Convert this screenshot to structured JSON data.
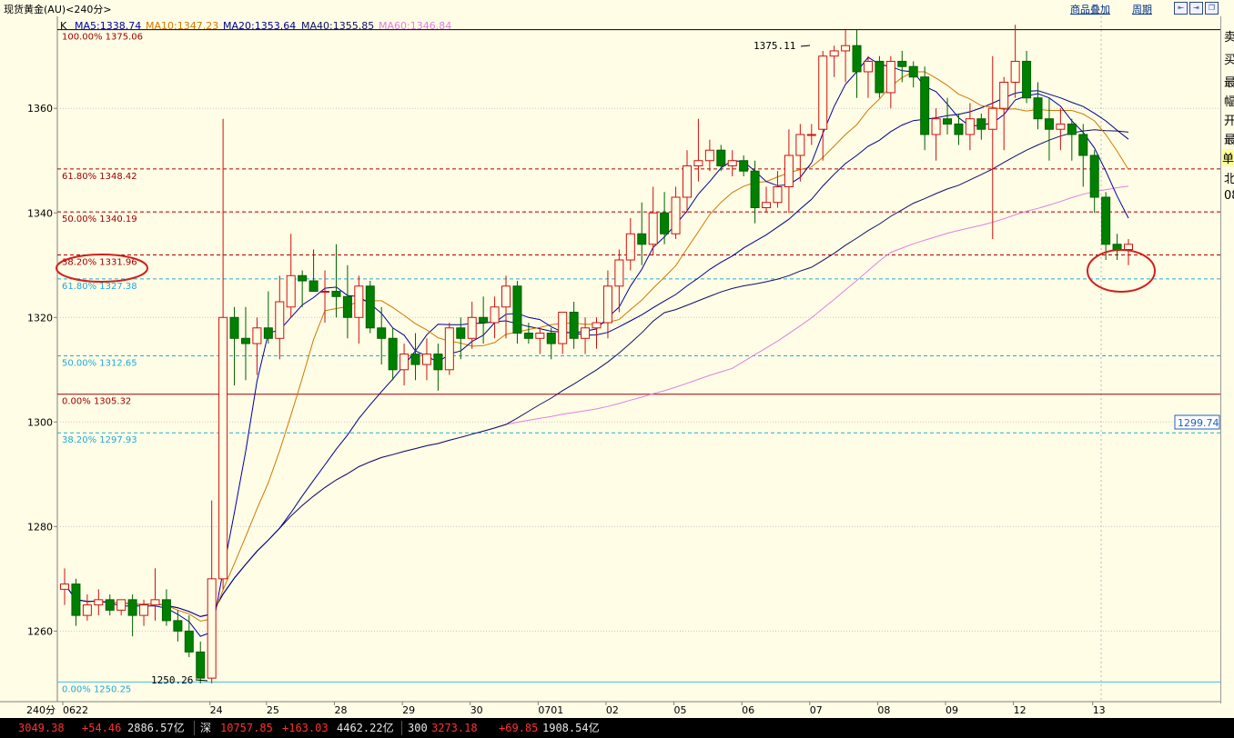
{
  "window": {
    "title": "现货黄金(AU)<240分>",
    "overlay_button": "商品叠加",
    "period_button": "周期",
    "nav_icons": [
      "step-back-icon",
      "step-forward-icon",
      "restore-window-icon"
    ]
  },
  "indicator": {
    "mode": "K",
    "ma5": "MA5:1338.74",
    "ma10": "MA10:1347.23",
    "ma20": "MA20:1353.64",
    "ma40": "MA40:1355.85",
    "ma60": "MA60:1346.84",
    "colors": {
      "ma5": "#0000a0",
      "ma10": "#d07800",
      "ma20": "#00008a",
      "ma40": "#101060",
      "ma60": "#e080e0"
    }
  },
  "chart_data": {
    "type": "candlestick",
    "y_ticks": [
      "1360",
      "1340",
      "1320",
      "1300",
      "1280",
      "1260"
    ],
    "ylim": [
      1246.5,
      1377.6
    ],
    "x_labels": [
      "0622",
      "24",
      "25",
      "28",
      "29",
      "30",
      "0701",
      "02",
      "05",
      "06",
      "07",
      "08",
      "09",
      "12",
      "13"
    ],
    "x_corner_label": "240分",
    "price_box": "1299.74",
    "high_label": "1375.11",
    "low_label": "1250.26",
    "fib_levels": [
      {
        "text": "100.00% 1375.06",
        "value": 1375.06,
        "style": "solid-black"
      },
      {
        "text": "61.80% 1348.42",
        "value": 1348.42,
        "style": "dash-red"
      },
      {
        "text": "50.00% 1340.19",
        "value": 1340.19,
        "style": "dash-red"
      },
      {
        "text": "38.20% 1331.96",
        "value": 1331.96,
        "style": "dash-red"
      },
      {
        "text": "61.80% 1327.38",
        "value": 1327.38,
        "style": "dash-cyan"
      },
      {
        "text": "50.00% 1312.65",
        "value": 1312.65,
        "style": "dash-cyan"
      },
      {
        "text": "0.00% 1305.32",
        "value": 1305.32,
        "style": "solid-red"
      },
      {
        "text": "38.20% 1297.93",
        "value": 1297.93,
        "style": "dash-cyan"
      },
      {
        "text": "0.00% 1250.25",
        "value": 1250.25,
        "style": "solid-cyan"
      }
    ],
    "candles": [
      [
        1268,
        1272,
        1265,
        1269
      ],
      [
        1269,
        1270,
        1261,
        1263
      ],
      [
        1263,
        1267,
        1262,
        1265
      ],
      [
        1265,
        1268,
        1263,
        1266
      ],
      [
        1266,
        1267,
        1263,
        1264
      ],
      [
        1264,
        1266,
        1263,
        1266
      ],
      [
        1266,
        1267,
        1259,
        1263
      ],
      [
        1263,
        1266,
        1261,
        1265
      ],
      [
        1265,
        1272,
        1262,
        1266
      ],
      [
        1266,
        1268,
        1261,
        1262
      ],
      [
        1262,
        1264,
        1258,
        1260
      ],
      [
        1260,
        1263,
        1255,
        1256
      ],
      [
        1256,
        1258,
        1250,
        1251
      ],
      [
        1251,
        1285,
        1250,
        1270
      ],
      [
        1270,
        1358,
        1268,
        1320
      ],
      [
        1320,
        1322,
        1307,
        1316
      ],
      [
        1316,
        1322,
        1308,
        1315
      ],
      [
        1315,
        1320,
        1309,
        1318
      ],
      [
        1318,
        1325,
        1315,
        1316
      ],
      [
        1316,
        1328,
        1312,
        1323
      ],
      [
        1322,
        1336,
        1320,
        1328
      ],
      [
        1328,
        1329,
        1322,
        1327
      ],
      [
        1327,
        1333,
        1325,
        1325
      ],
      [
        1325,
        1329,
        1319,
        1325
      ],
      [
        1325,
        1334,
        1320,
        1324
      ],
      [
        1324,
        1330,
        1316,
        1320
      ],
      [
        1320,
        1328,
        1315,
        1326
      ],
      [
        1326,
        1327,
        1317,
        1318
      ],
      [
        1318,
        1322,
        1311,
        1316
      ],
      [
        1316,
        1318,
        1308,
        1310
      ],
      [
        1310,
        1315,
        1307,
        1313
      ],
      [
        1313,
        1317,
        1308,
        1311
      ],
      [
        1311,
        1316,
        1308,
        1313
      ],
      [
        1313,
        1315,
        1306,
        1310
      ],
      [
        1310,
        1319,
        1309,
        1318
      ],
      [
        1318,
        1320,
        1312,
        1316
      ],
      [
        1316,
        1323,
        1314,
        1320
      ],
      [
        1320,
        1324,
        1315,
        1319
      ],
      [
        1319,
        1324,
        1316,
        1322
      ],
      [
        1322,
        1328,
        1316,
        1326
      ],
      [
        1326,
        1327,
        1315,
        1317
      ],
      [
        1317,
        1319,
        1315,
        1316
      ],
      [
        1316,
        1318,
        1313,
        1317
      ],
      [
        1317,
        1318,
        1312,
        1315
      ],
      [
        1315,
        1321,
        1313,
        1321
      ],
      [
        1321,
        1323,
        1314,
        1316
      ],
      [
        1316,
        1320,
        1313,
        1318
      ],
      [
        1318,
        1320,
        1314,
        1319
      ],
      [
        1319,
        1329,
        1316,
        1326
      ],
      [
        1326,
        1333,
        1321,
        1331
      ],
      [
        1331,
        1339,
        1329,
        1336
      ],
      [
        1336,
        1342,
        1330,
        1334
      ],
      [
        1334,
        1345,
        1332,
        1340
      ],
      [
        1340,
        1344,
        1334,
        1336
      ],
      [
        1336,
        1345,
        1335,
        1343
      ],
      [
        1343,
        1352,
        1340,
        1349
      ],
      [
        1349,
        1358,
        1346,
        1350
      ],
      [
        1350,
        1354,
        1348,
        1352
      ],
      [
        1352,
        1353,
        1348,
        1349
      ],
      [
        1349,
        1352,
        1347,
        1350
      ],
      [
        1350,
        1351,
        1347,
        1348
      ],
      [
        1348,
        1350,
        1338,
        1341
      ],
      [
        1341,
        1345,
        1340,
        1342
      ],
      [
        1342,
        1348,
        1341,
        1345
      ],
      [
        1345,
        1356,
        1340,
        1351
      ],
      [
        1351,
        1357,
        1346,
        1355
      ],
      [
        1355,
        1357,
        1353,
        1355
      ],
      [
        1356,
        1371,
        1350,
        1370
      ],
      [
        1370,
        1372,
        1366,
        1371
      ],
      [
        1371,
        1375,
        1365,
        1372
      ],
      [
        1372,
        1375,
        1362,
        1367
      ],
      [
        1367,
        1370,
        1362,
        1369
      ],
      [
        1369,
        1370,
        1362,
        1363
      ],
      [
        1363,
        1370,
        1360,
        1369
      ],
      [
        1369,
        1371,
        1365,
        1368
      ],
      [
        1368,
        1369,
        1364,
        1366
      ],
      [
        1366,
        1368,
        1352,
        1355
      ],
      [
        1355,
        1360,
        1350,
        1358
      ],
      [
        1358,
        1362,
        1355,
        1357
      ],
      [
        1357,
        1359,
        1353,
        1355
      ],
      [
        1355,
        1361,
        1352,
        1358
      ],
      [
        1358,
        1359,
        1354,
        1356
      ],
      [
        1356,
        1370,
        1335,
        1360
      ],
      [
        1360,
        1366,
        1352,
        1365
      ],
      [
        1365,
        1376,
        1362,
        1369
      ],
      [
        1369,
        1371,
        1361,
        1362
      ],
      [
        1362,
        1365,
        1356,
        1358
      ],
      [
        1358,
        1362,
        1350,
        1356
      ],
      [
        1356,
        1360,
        1352,
        1357
      ],
      [
        1357,
        1358,
        1350,
        1355
      ],
      [
        1355,
        1357,
        1345,
        1351
      ],
      [
        1351,
        1352,
        1340,
        1343
      ],
      [
        1343,
        1344,
        1331,
        1334
      ],
      [
        1334,
        1336,
        1331,
        1333
      ],
      [
        1333,
        1335,
        1330,
        1334
      ]
    ],
    "annotations": [
      {
        "shape": "ellipse",
        "around": "38.20% 1331.96",
        "color": "#d02020"
      },
      {
        "shape": "ellipse",
        "around": "last candles",
        "color": "#d02020"
      }
    ]
  },
  "right_panel": [
    "卖",
    "买",
    "最",
    "幅",
    "开",
    "最",
    "单",
    "北",
    "08"
  ],
  "statusbar": {
    "items": [
      {
        "text": "3049.38",
        "color": "red"
      },
      {
        "text": "+54.46",
        "color": "red"
      },
      {
        "text": "2886.57亿",
        "color": "white"
      },
      {
        "text": "深",
        "color": "white"
      },
      {
        "text": "10757.85",
        "color": "red"
      },
      {
        "text": "+163.03",
        "color": "red"
      },
      {
        "text": "4462.22亿",
        "color": "white"
      },
      {
        "text": "300",
        "color": "white"
      },
      {
        "text": "3273.18",
        "color": "red"
      },
      {
        "text": "+69.85",
        "color": "red"
      },
      {
        "text": "1908.54亿",
        "color": "white"
      }
    ]
  }
}
